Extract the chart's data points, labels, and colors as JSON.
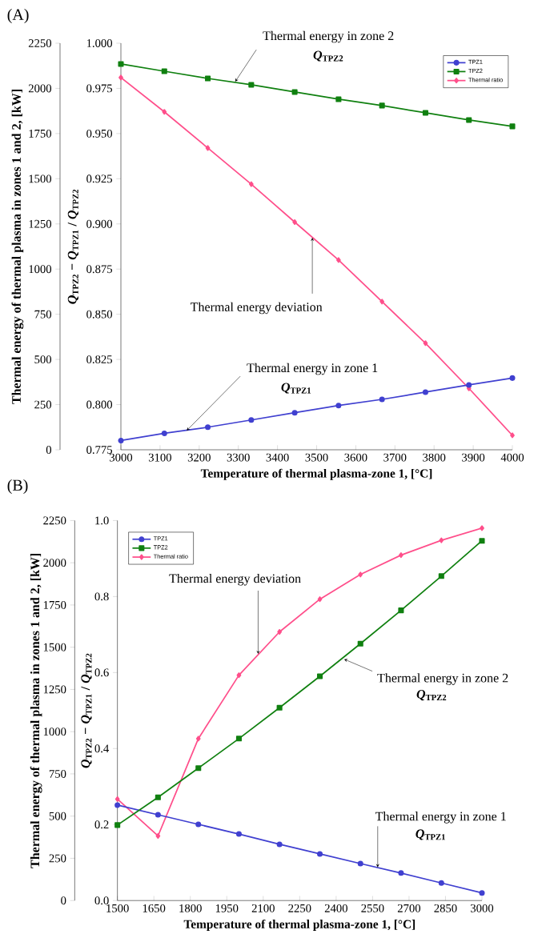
{
  "chart_data": [
    {
      "type": "line",
      "title": "(A)",
      "xlabel": "Temperature of thermal plasma-zone 1, [°C]",
      "ylabel": "Thermal energy of thermal plasma in zones 1 and 2, [kW]",
      "y2label": "*Q*$_{TPZ2}$ − *Q*$_{TPZ1}$ / *Q*$_{TPZ2}$",
      "x": [
        3000,
        3111,
        3222,
        3333,
        3444,
        3556,
        3667,
        3778,
        3889,
        4000
      ],
      "series": [
        {
          "name": "TPZ1",
          "color": "#4040d0",
          "marker": "circle",
          "values": [
            51,
            91,
            125,
            165,
            205,
            245,
            279,
            319,
            359,
            397
          ]
        },
        {
          "name": "TPZ2",
          "color": "#108010",
          "marker": "square",
          "values": [
            2135,
            2095,
            2055,
            2020,
            1980,
            1940,
            1905,
            1865,
            1825,
            1790
          ]
        },
        {
          "name": "Thermal ratio",
          "color": "#ff4f8b",
          "marker": "diamond",
          "axis": "y2",
          "values": [
            0.981,
            0.962,
            0.942,
            0.922,
            0.901,
            0.88,
            0.857,
            0.834,
            0.809,
            0.783
          ]
        }
      ],
      "xlim": [
        3000,
        4000
      ],
      "xticks": [
        3000,
        3100,
        3200,
        3300,
        3400,
        3500,
        3600,
        3700,
        3800,
        3900,
        4000
      ],
      "ylim": [
        0,
        2250
      ],
      "yticks": [
        0,
        250,
        500,
        750,
        1000,
        1250,
        1500,
        1750,
        2000,
        2250
      ],
      "y2lim": [
        0.775,
        1.0
      ],
      "y2ticks": [
        0.775,
        {
          "value": 0.8,
          "label": "0.800"
        },
        0.825,
        {
          "value": 0.85,
          "label": "0.850"
        },
        0.875,
        {
          "value": 0.9,
          "label": "0.900"
        },
        0.925,
        {
          "value": 0.95,
          "label": "0.950"
        },
        0.975,
        {
          "value": 1.0,
          "label": "1.000"
        }
      ],
      "legend": "top right",
      "annotations": [
        {
          "text": "Thermal energy in zone 2",
          "x": 3292,
          "y": 2037
        },
        "*Q*$_{TPZ2}$",
        {
          "text": "Thermal energy deviation",
          "x": 3489,
          "y": 1174
        },
        {
          "text": "Thermal energy in zone 1",
          "x": 3168,
          "y": 106
        },
        "*Q*$_{TPZ1}$"
      ]
    },
    {
      "type": "line",
      "title": "(B)",
      "xlabel": "Temperature of thermal plasma-zone 1, [°C]",
      "ylabel": "Thermal energy of thermal plasma in zones 1 and 2, [kW]",
      "y2label": "*Q*$_{TPZ2}$ − *Q*$_{TPZ1}$ / *Q*$_{TPZ2}$",
      "x": [
        1500,
        1667,
        1833,
        2000,
        2167,
        2333,
        2500,
        2667,
        2833,
        3000
      ],
      "series": [
        {
          "name": "TPZ1",
          "color": "#4040d0",
          "marker": "circle",
          "values": [
            565,
            508,
            451,
            394,
            333,
            276,
            219,
            163,
            104,
            45
          ]
        },
        {
          "name": "TPZ2",
          "color": "#108010",
          "marker": "square",
          "values": [
            447,
            611,
            784,
            959,
            1142,
            1328,
            1521,
            1718,
            1921,
            2130
          ]
        },
        {
          "name": "Thermal ratio",
          "color": "#ff4f8b",
          "marker": "diamond",
          "axis": "y2",
          "values": [
            0.267,
            0.17,
            0.426,
            0.593,
            0.707,
            0.793,
            0.858,
            0.909,
            0.948,
            0.98
          ]
        }
      ],
      "xlim": [
        1500,
        3000
      ],
      "xticks": [
        1500,
        1650,
        1800,
        1950,
        2100,
        2250,
        2400,
        2550,
        2700,
        2850,
        3000
      ],
      "ylim": [
        0,
        2250
      ],
      "yticks": [
        0,
        250,
        500,
        750,
        1000,
        1250,
        1500,
        1750,
        2000,
        2250
      ],
      "y2lim": [
        0,
        1.0
      ],
      "y2ticks": [
        {
          "value": 0,
          "label": "0.0"
        },
        0.2,
        0.4,
        0.6,
        0.8,
        {
          "value": 1.0,
          "label": "1.0"
        }
      ],
      "legend": "top left",
      "annotations": [
        {
          "text": "Thermal energy deviation",
          "x": 2079,
          "y": 1460
        },
        {
          "text": "Thermal energy in zone 2",
          "x": 2433,
          "y": 1429
        },
        "*Q*$_{TPZ2}$",
        {
          "text": "Thermal energy in zone 1",
          "x": 2571,
          "y": 197
        },
        "*Q*$_{TPZ1}$"
      ]
    }
  ]
}
